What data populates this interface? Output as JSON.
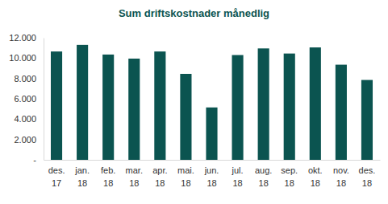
{
  "chart_data": {
    "type": "bar",
    "title": "Sum driftskostnader månedlig",
    "categories": [
      "des. 17",
      "jan. 18",
      "feb. 18",
      "mar. 18",
      "apr. 18",
      "mai. 18",
      "jun. 18",
      "jul. 18",
      "aug. 18",
      "sep. 18",
      "okt. 18",
      "nov. 18",
      "des. 18"
    ],
    "values": [
      10650,
      11300,
      10350,
      9950,
      10650,
      8450,
      5150,
      10300,
      10950,
      10450,
      11050,
      9350,
      7850
    ],
    "color": "#0b5450",
    "ylim": [
      0,
      12000
    ],
    "yticks": [
      {
        "value": 0,
        "label": "-"
      },
      {
        "value": 2000,
        "label": "2.000"
      },
      {
        "value": 4000,
        "label": "4.000"
      },
      {
        "value": 6000,
        "label": "6.000"
      },
      {
        "value": 8000,
        "label": "8.000"
      },
      {
        "value": 10000,
        "label": "10.000"
      },
      {
        "value": 12000,
        "label": "12.000"
      }
    ],
    "grid": false
  }
}
